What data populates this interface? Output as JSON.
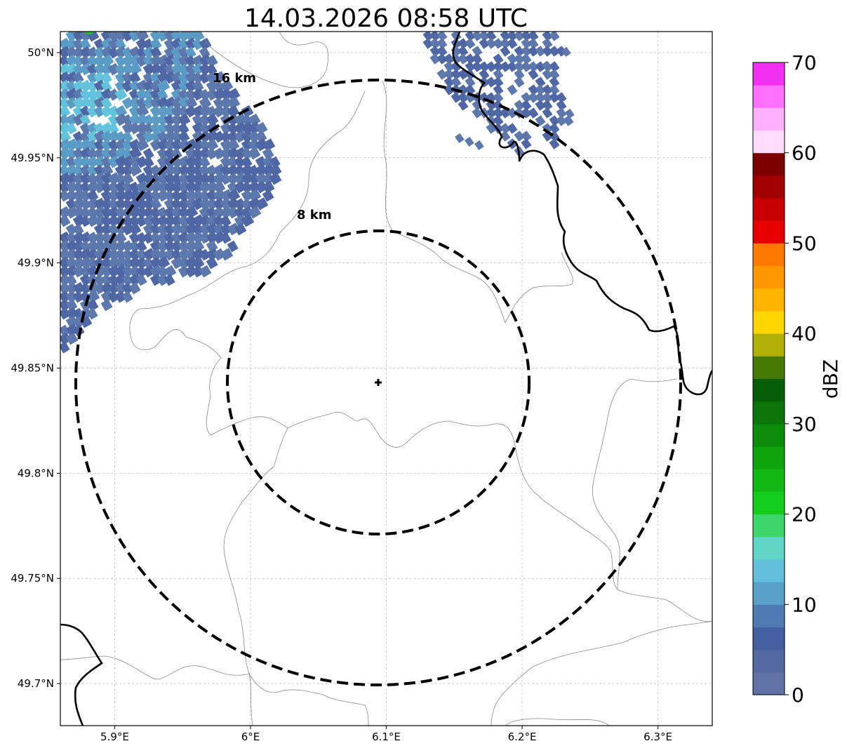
{
  "title": "14.03.2026 08:58 UTC",
  "map": {
    "lon_range": [
      5.86,
      6.34
    ],
    "lat_range": [
      49.68,
      50.01
    ],
    "lon_ticks": [
      {
        "value": 5.9,
        "label": "5.9°E"
      },
      {
        "value": 6.0,
        "label": "6°E"
      },
      {
        "value": 6.1,
        "label": "6.1°E"
      },
      {
        "value": 6.2,
        "label": "6.2°E"
      },
      {
        "value": 6.3,
        "label": "6.3°E"
      }
    ],
    "lat_ticks": [
      {
        "value": 50.0,
        "label": "50°N"
      },
      {
        "value": 49.95,
        "label": "49.95°N"
      },
      {
        "value": 49.9,
        "label": "49.9°N"
      },
      {
        "value": 49.85,
        "label": "49.85°N"
      },
      {
        "value": 49.8,
        "label": "49.8°N"
      },
      {
        "value": 49.75,
        "label": "49.75°N"
      },
      {
        "value": 49.7,
        "label": "49.7°N"
      }
    ],
    "grid": true,
    "center": {
      "lon": 6.094,
      "lat": 49.843
    },
    "range_rings": [
      {
        "radius_km": 8,
        "label": "8 km"
      },
      {
        "radius_km": 16,
        "label": "16 km"
      }
    ]
  },
  "colorbar": {
    "label": "dBZ",
    "min": 0,
    "max": 70,
    "tick_labels": [
      "0",
      "10",
      "20",
      "30",
      "40",
      "50",
      "60",
      "70"
    ],
    "colors": [
      "#6173a6",
      "#5468a2",
      "#4560a1",
      "#4d7bb2",
      "#59a0c8",
      "#63c0dc",
      "#62d6c6",
      "#3dd66a",
      "#14cc1e",
      "#12b814",
      "#0fa30e",
      "#0d8c0c",
      "#0b750a",
      "#065f07",
      "#477a05",
      "#b0b006",
      "#ffd600",
      "#ffb400",
      "#ff9800",
      "#ff7b00",
      "#e80000",
      "#c80000",
      "#a00000",
      "#7c0000",
      "#ffdcff",
      "#ffb0ff",
      "#ff70ff",
      "#f032f0"
    ]
  },
  "echo_colors": {
    "dark": "#4f67a4",
    "mid": "#5d78ad",
    "light": "#5b9cc7",
    "cyan": "#63c3dc",
    "green": "#14cc1e"
  }
}
